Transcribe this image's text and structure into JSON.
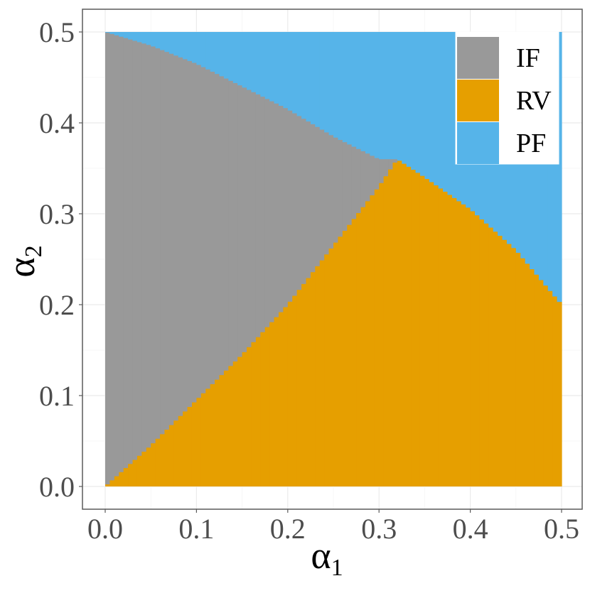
{
  "chart_data": {
    "type": "heatmap",
    "xlabel": "α",
    "xlabel_sub": "1",
    "ylabel": "α",
    "ylabel_sub": "2",
    "xlim": [
      0,
      0.5
    ],
    "ylim": [
      0,
      0.5
    ],
    "x_ticks": [
      "0.0",
      "0.1",
      "0.2",
      "0.3",
      "0.4",
      "0.5"
    ],
    "y_ticks": [
      "0.0",
      "0.1",
      "0.2",
      "0.3",
      "0.4",
      "0.5"
    ],
    "grid": true,
    "legend_position": "top-right",
    "regions": [
      {
        "name": "IF",
        "color": "#999999"
      },
      {
        "name": "RV",
        "color": "#E69F00"
      },
      {
        "name": "PF",
        "color": "#56B4E9"
      }
    ],
    "IF_upper_boundary": {
      "a1": [
        0.0,
        0.05,
        0.1,
        0.15,
        0.2,
        0.25,
        0.3,
        0.32
      ],
      "a2": [
        0.5,
        0.485,
        0.465,
        0.44,
        0.415,
        0.385,
        0.36,
        0.36
      ]
    },
    "IF_RV_boundary": {
      "a1": [
        0.0,
        0.05,
        0.1,
        0.15,
        0.2,
        0.25,
        0.3,
        0.32
      ],
      "a2": [
        0.0,
        0.045,
        0.095,
        0.145,
        0.2,
        0.265,
        0.33,
        0.36
      ]
    },
    "RV_PF_boundary": {
      "a1": [
        0.32,
        0.35,
        0.4,
        0.45,
        0.5
      ],
      "a2": [
        0.36,
        0.34,
        0.305,
        0.26,
        0.2
      ]
    }
  }
}
